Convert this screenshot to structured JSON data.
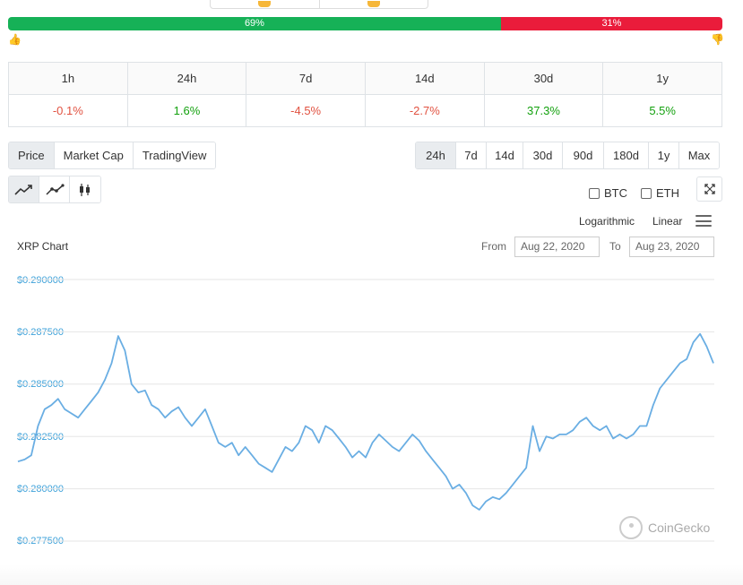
{
  "sentiment": {
    "positive_pct": 69,
    "negative_pct": 31,
    "positive_label": "69%",
    "negative_label": "31%",
    "positive_color": "#16b157",
    "negative_color": "#ea1c3b",
    "up_icon": "thumbs-up-icon",
    "down_icon": "thumbs-down-icon"
  },
  "performance": {
    "periods": [
      "1h",
      "24h",
      "7d",
      "14d",
      "30d",
      "1y"
    ],
    "changes": [
      "-0.1%",
      "1.6%",
      "-4.5%",
      "-2.7%",
      "37.3%",
      "5.5%"
    ]
  },
  "tabs": [
    {
      "label": "Price",
      "active": true
    },
    {
      "label": "Market Cap",
      "active": false
    },
    {
      "label": "TradingView",
      "active": false
    }
  ],
  "ranges": [
    {
      "label": "24h",
      "active": true
    },
    {
      "label": "7d",
      "active": false
    },
    {
      "label": "14d",
      "active": false
    },
    {
      "label": "30d",
      "active": false
    },
    {
      "label": "90d",
      "active": false
    },
    {
      "label": "180d",
      "active": false
    },
    {
      "label": "1y",
      "active": false
    },
    {
      "label": "Max",
      "active": false
    }
  ],
  "chart_types": [
    "line-chart-icon",
    "line-points-icon",
    "candlestick-icon"
  ],
  "compare": {
    "btc": "BTC",
    "eth": "ETH",
    "btc_checked": false,
    "eth_checked": false
  },
  "scale": {
    "log": "Logarithmic",
    "linear": "Linear"
  },
  "chart_title": "XRP Chart",
  "date_range": {
    "from_label": "From",
    "from": "Aug 22, 2020",
    "to_label": "To",
    "to": "Aug 23, 2020"
  },
  "brand": "CoinGecko",
  "chart_data": {
    "type": "line",
    "title": "XRP Chart",
    "ylim": [
      0.2775,
      0.29
    ],
    "y_ticks": [
      "$0.290000",
      "$0.287500",
      "$0.285000",
      "$0.282500",
      "$0.280000",
      "$0.277500"
    ],
    "y_tick_values": [
      0.29,
      0.2875,
      0.285,
      0.2825,
      0.28,
      0.2775
    ],
    "line_color": "#6aaee3",
    "series": [
      {
        "values": [
          0.2813,
          0.2814,
          0.2816,
          0.283,
          0.2838,
          0.284,
          0.2843,
          0.2838,
          0.2836,
          0.2834,
          0.2838,
          0.2842,
          0.2846,
          0.2852,
          0.286,
          0.2873,
          0.2866,
          0.285,
          0.2846,
          0.2847,
          0.284,
          0.2838,
          0.2834,
          0.2837,
          0.2839,
          0.2834,
          0.283,
          0.2834,
          0.2838,
          0.283,
          0.2822,
          0.282,
          0.2822,
          0.2816,
          0.282,
          0.2816,
          0.2812,
          0.281,
          0.2808,
          0.2814,
          0.282,
          0.2818,
          0.2822,
          0.283,
          0.2828,
          0.2822,
          0.283,
          0.2828,
          0.2824,
          0.282,
          0.2815,
          0.2818,
          0.2815,
          0.2822,
          0.2826,
          0.2823,
          0.282,
          0.2818,
          0.2822,
          0.2826,
          0.2823,
          0.2818,
          0.2814,
          0.281,
          0.2806,
          0.28,
          0.2802,
          0.2798,
          0.2792,
          0.279,
          0.2794,
          0.2796,
          0.2795,
          0.2798,
          0.2802,
          0.2806,
          0.281,
          0.283,
          0.2818,
          0.2825,
          0.2824,
          0.2826,
          0.2826,
          0.2828,
          0.2832,
          0.2834,
          0.283,
          0.2828,
          0.283,
          0.2824,
          0.2826,
          0.2824,
          0.2826,
          0.283,
          0.283,
          0.284,
          0.2848,
          0.2852,
          0.2856,
          0.286,
          0.2862,
          0.287,
          0.2874,
          0.2868,
          0.286
        ]
      }
    ]
  }
}
